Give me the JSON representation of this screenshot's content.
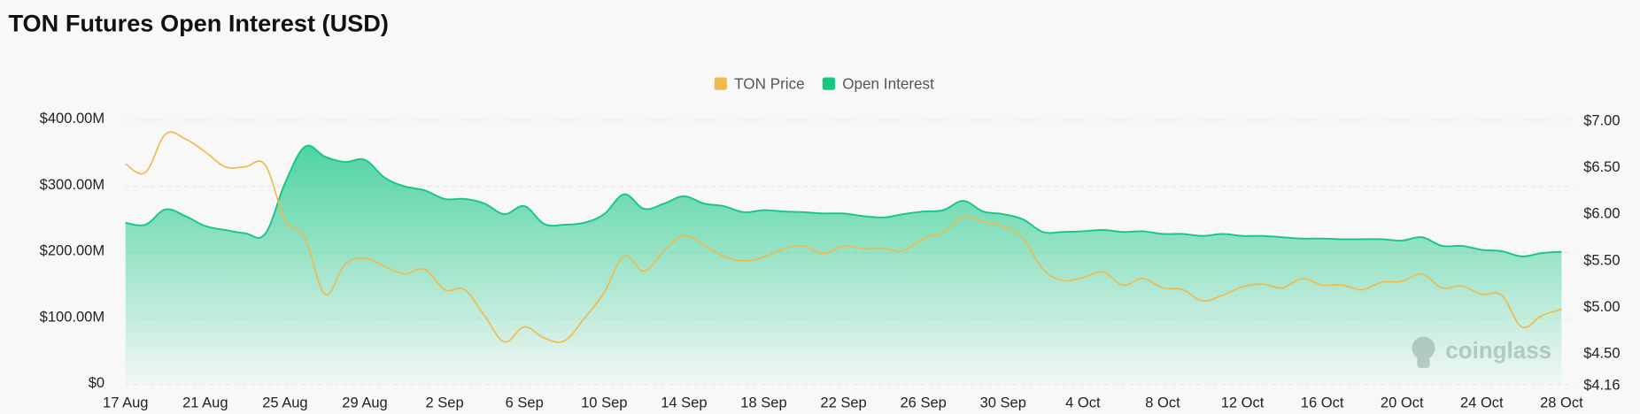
{
  "chart_data": {
    "type": "line-area",
    "title": "TON Futures Open Interest (USD)",
    "watermark": "coinglass",
    "legend": "top",
    "grid": true,
    "categories": [
      "17 Aug",
      null,
      null,
      null,
      "21 Aug",
      null,
      null,
      null,
      "25 Aug",
      null,
      null,
      null,
      "29 Aug",
      null,
      null,
      null,
      "2 Sep",
      null,
      null,
      null,
      "6 Sep",
      null,
      null,
      null,
      "10 Sep",
      null,
      null,
      null,
      "14 Sep",
      null,
      null,
      null,
      "18 Sep",
      null,
      null,
      null,
      "22 Sep",
      null,
      null,
      null,
      "26 Sep",
      null,
      null,
      null,
      "30 Sep",
      null,
      null,
      null,
      "4 Oct",
      null,
      null,
      null,
      "8 Oct",
      null,
      null,
      null,
      "12 Oct",
      null,
      null,
      null,
      "16 Oct",
      null,
      null,
      null,
      "20 Oct",
      null,
      null,
      null,
      "24 Oct",
      null,
      null,
      null,
      "28 Oct"
    ],
    "series": [
      {
        "name": "TON Price",
        "color": "#f0b94c",
        "axis": "y2",
        "kind": "line",
        "values": [
          6.53,
          6.44,
          6.85,
          6.8,
          6.66,
          6.5,
          6.5,
          6.52,
          5.93,
          5.73,
          5.13,
          5.45,
          5.52,
          5.43,
          5.35,
          5.4,
          5.18,
          5.18,
          4.9,
          4.62,
          4.78,
          4.66,
          4.63,
          4.87,
          5.15,
          5.54,
          5.38,
          5.6,
          5.76,
          5.66,
          5.54,
          5.49,
          5.53,
          5.62,
          5.65,
          5.57,
          5.65,
          5.62,
          5.62,
          5.6,
          5.73,
          5.8,
          5.96,
          5.91,
          5.86,
          5.73,
          5.4,
          5.28,
          5.31,
          5.37,
          5.23,
          5.3,
          5.2,
          5.18,
          5.06,
          5.12,
          5.21,
          5.24,
          5.2,
          5.3,
          5.23,
          5.23,
          5.18,
          5.26,
          5.27,
          5.35,
          5.2,
          5.22,
          5.13,
          5.12,
          4.78,
          4.9,
          4.97
        ]
      },
      {
        "name": "Open Interest",
        "color": "#16c784",
        "kind": "area",
        "values": [
          245000000,
          242000000,
          265000000,
          255000000,
          240000000,
          234000000,
          229000000,
          228000000,
          305000000,
          360000000,
          345000000,
          337000000,
          340000000,
          313000000,
          300000000,
          294000000,
          281000000,
          281000000,
          274000000,
          258000000,
          270000000,
          243000000,
          242000000,
          245000000,
          258000000,
          288000000,
          266000000,
          274000000,
          285000000,
          274000000,
          270000000,
          261000000,
          264000000,
          262000000,
          261000000,
          259000000,
          259000000,
          255000000,
          253000000,
          258000000,
          262000000,
          264000000,
          278000000,
          262000000,
          258000000,
          250000000,
          231000000,
          231000000,
          232000000,
          234000000,
          231000000,
          232000000,
          228000000,
          228000000,
          225000000,
          228000000,
          225000000,
          225000000,
          223000000,
          221000000,
          221000000,
          220000000,
          220000000,
          220000000,
          218000000,
          223000000,
          210000000,
          210000000,
          204000000,
          202000000,
          194000000,
          199000000,
          201000000
        ]
      }
    ],
    "ylim": [
      0,
      400000000
    ],
    "yticks": [
      {
        "value": 0,
        "label": "$0"
      },
      {
        "value": 100000000,
        "label": "$100.00M"
      },
      {
        "value": 200000000,
        "label": "$200.00M"
      },
      {
        "value": 300000000,
        "label": "$300.00M"
      },
      {
        "value": 400000000,
        "label": "$400.00M"
      }
    ],
    "y2lim": [
      4.16,
      7.0
    ],
    "y2ticks": [
      {
        "value": 4.16,
        "label": "$4.16"
      },
      {
        "value": 4.5,
        "label": "$4.50"
      },
      {
        "value": 5,
        "label": "$5.00"
      },
      {
        "value": 5.5,
        "label": "$5.50"
      },
      {
        "value": 6,
        "label": "$6.00"
      },
      {
        "value": 6.5,
        "label": "$6.50"
      },
      {
        "value": 7,
        "label": "$7.00"
      }
    ]
  }
}
